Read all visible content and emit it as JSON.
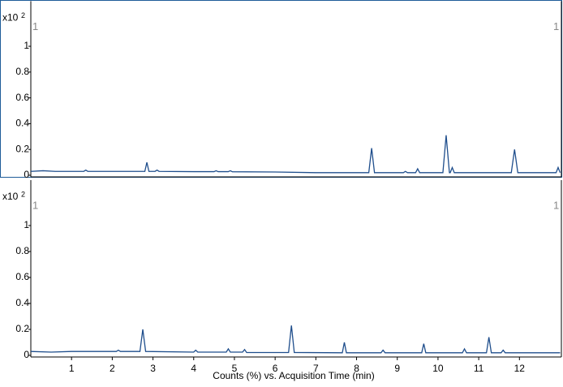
{
  "chart_data": [
    {
      "type": "line",
      "y_multiplier": "x10",
      "y_exponent": "2",
      "corner_labels": [
        "1",
        "1"
      ],
      "color": "#1f4e8c",
      "xlim": [
        0,
        13.03
      ],
      "ylim": [
        0,
        1.35
      ],
      "yticks": [
        0,
        0.2,
        0.4,
        0.6,
        0.8,
        1
      ],
      "x": [
        0,
        0.3,
        0.6,
        1.3,
        1.35,
        1.4,
        2.0,
        2.8,
        2.85,
        2.9,
        3.05,
        3.1,
        3.15,
        4.0,
        4.5,
        4.55,
        4.6,
        4.85,
        4.9,
        4.95,
        6.0,
        7.0,
        8.3,
        8.37,
        8.44,
        9.15,
        9.2,
        9.25,
        9.45,
        9.5,
        9.55,
        10.12,
        10.2,
        10.28,
        10.3,
        10.35,
        10.4,
        11.8,
        11.88,
        11.96,
        12.5,
        12.9,
        12.95,
        13.0
      ],
      "values": [
        0.03,
        0.035,
        0.03,
        0.03,
        0.04,
        0.03,
        0.03,
        0.03,
        0.1,
        0.03,
        0.03,
        0.04,
        0.03,
        0.028,
        0.028,
        0.035,
        0.028,
        0.028,
        0.035,
        0.027,
        0.025,
        0.02,
        0.02,
        0.21,
        0.02,
        0.02,
        0.03,
        0.02,
        0.02,
        0.05,
        0.02,
        0.02,
        0.31,
        0.02,
        0.02,
        0.06,
        0.02,
        0.02,
        0.2,
        0.02,
        0.02,
        0.02,
        0.06,
        0.02
      ]
    },
    {
      "type": "line",
      "y_multiplier": "x10",
      "y_exponent": "2",
      "corner_labels": [
        "1",
        "1"
      ],
      "color": "#1f4e8c",
      "x_label": "Counts (%) vs. Acquisition Time (min)",
      "xlim": [
        0,
        13.03
      ],
      "xticks": [
        1,
        2,
        3,
        4,
        5,
        6,
        7,
        8,
        9,
        10,
        11,
        12
      ],
      "ylim": [
        0,
        1.35
      ],
      "yticks": [
        0,
        0.2,
        0.4,
        0.6,
        0.8,
        1
      ],
      "x": [
        0,
        0.5,
        1.0,
        2.1,
        2.15,
        2.2,
        2.68,
        2.75,
        2.82,
        4.0,
        4.05,
        4.1,
        4.8,
        4.85,
        4.9,
        5.2,
        5.25,
        5.3,
        6.33,
        6.4,
        6.47,
        7.65,
        7.7,
        7.75,
        8.6,
        8.65,
        8.7,
        9.6,
        9.65,
        9.7,
        10.6,
        10.65,
        10.7,
        11.19,
        11.25,
        11.31,
        11.55,
        11.6,
        11.65,
        13.0
      ],
      "values": [
        0.03,
        0.025,
        0.03,
        0.03,
        0.04,
        0.03,
        0.03,
        0.2,
        0.03,
        0.025,
        0.04,
        0.025,
        0.025,
        0.05,
        0.025,
        0.025,
        0.045,
        0.022,
        0.022,
        0.23,
        0.022,
        0.02,
        0.1,
        0.02,
        0.02,
        0.04,
        0.02,
        0.02,
        0.09,
        0.02,
        0.02,
        0.05,
        0.02,
        0.02,
        0.14,
        0.02,
        0.02,
        0.04,
        0.02,
        0.02
      ]
    }
  ]
}
